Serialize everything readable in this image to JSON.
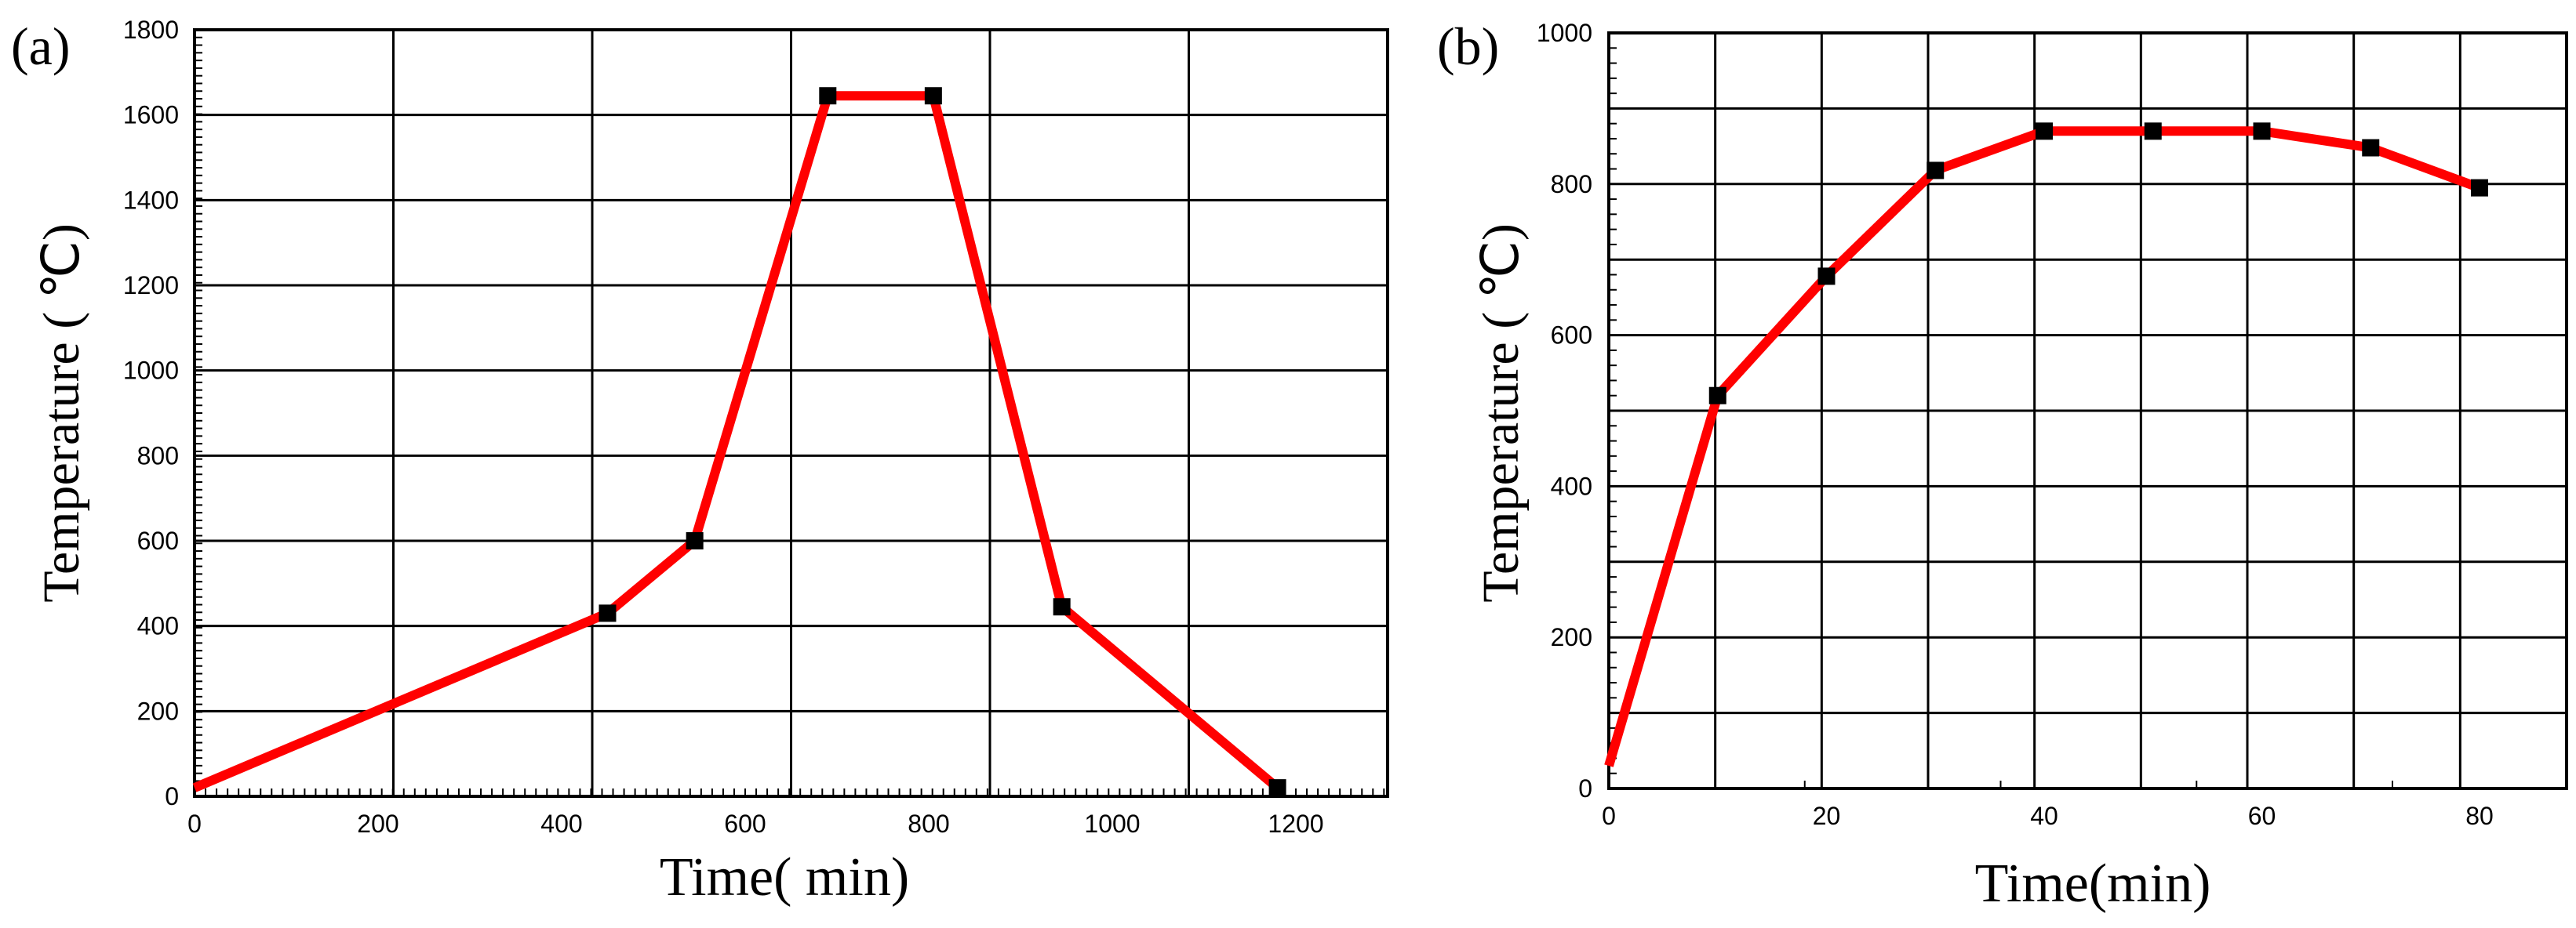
{
  "chart_data": [
    {
      "panel": "(a)",
      "type": "line",
      "title": "",
      "xlabel": "Time( min)",
      "ylabel": "Temperature ( ℃)",
      "xlim": [
        0,
        1300
      ],
      "ylim": [
        0,
        1800
      ],
      "xticks": [
        0,
        200,
        400,
        600,
        800,
        1000,
        1200
      ],
      "yticks": [
        0,
        200,
        400,
        600,
        800,
        1000,
        1200,
        1400,
        1600,
        1800
      ],
      "grid": true,
      "line_color": "#ff0000",
      "marker_color": "#000000",
      "series": [
        {
          "name": "Temperature",
          "x": [
            0,
            450,
            545,
            690,
            805,
            945,
            1180
          ],
          "y": [
            20,
            430,
            600,
            1645,
            1645,
            445,
            20
          ],
          "markers": [
            false,
            true,
            true,
            true,
            true,
            true,
            true
          ]
        }
      ]
    },
    {
      "panel": "(b)",
      "type": "line",
      "title": "",
      "xlabel": "Time(min)",
      "ylabel": "Temperature ( ℃)",
      "xlim": [
        0,
        88
      ],
      "ylim": [
        0,
        1000
      ],
      "xticks": [
        0,
        20,
        40,
        60,
        80
      ],
      "yticks": [
        0,
        200,
        400,
        600,
        800,
        1000
      ],
      "grid": true,
      "line_color": "#ff0000",
      "marker_color": "#000000",
      "series": [
        {
          "name": "Temperature",
          "x": [
            0,
            10,
            20,
            30,
            40,
            50,
            60,
            70,
            80
          ],
          "y": [
            30,
            520,
            678,
            818,
            870,
            870,
            870,
            848,
            795
          ],
          "markers": [
            false,
            true,
            true,
            true,
            true,
            true,
            true,
            true,
            true
          ]
        }
      ]
    }
  ]
}
